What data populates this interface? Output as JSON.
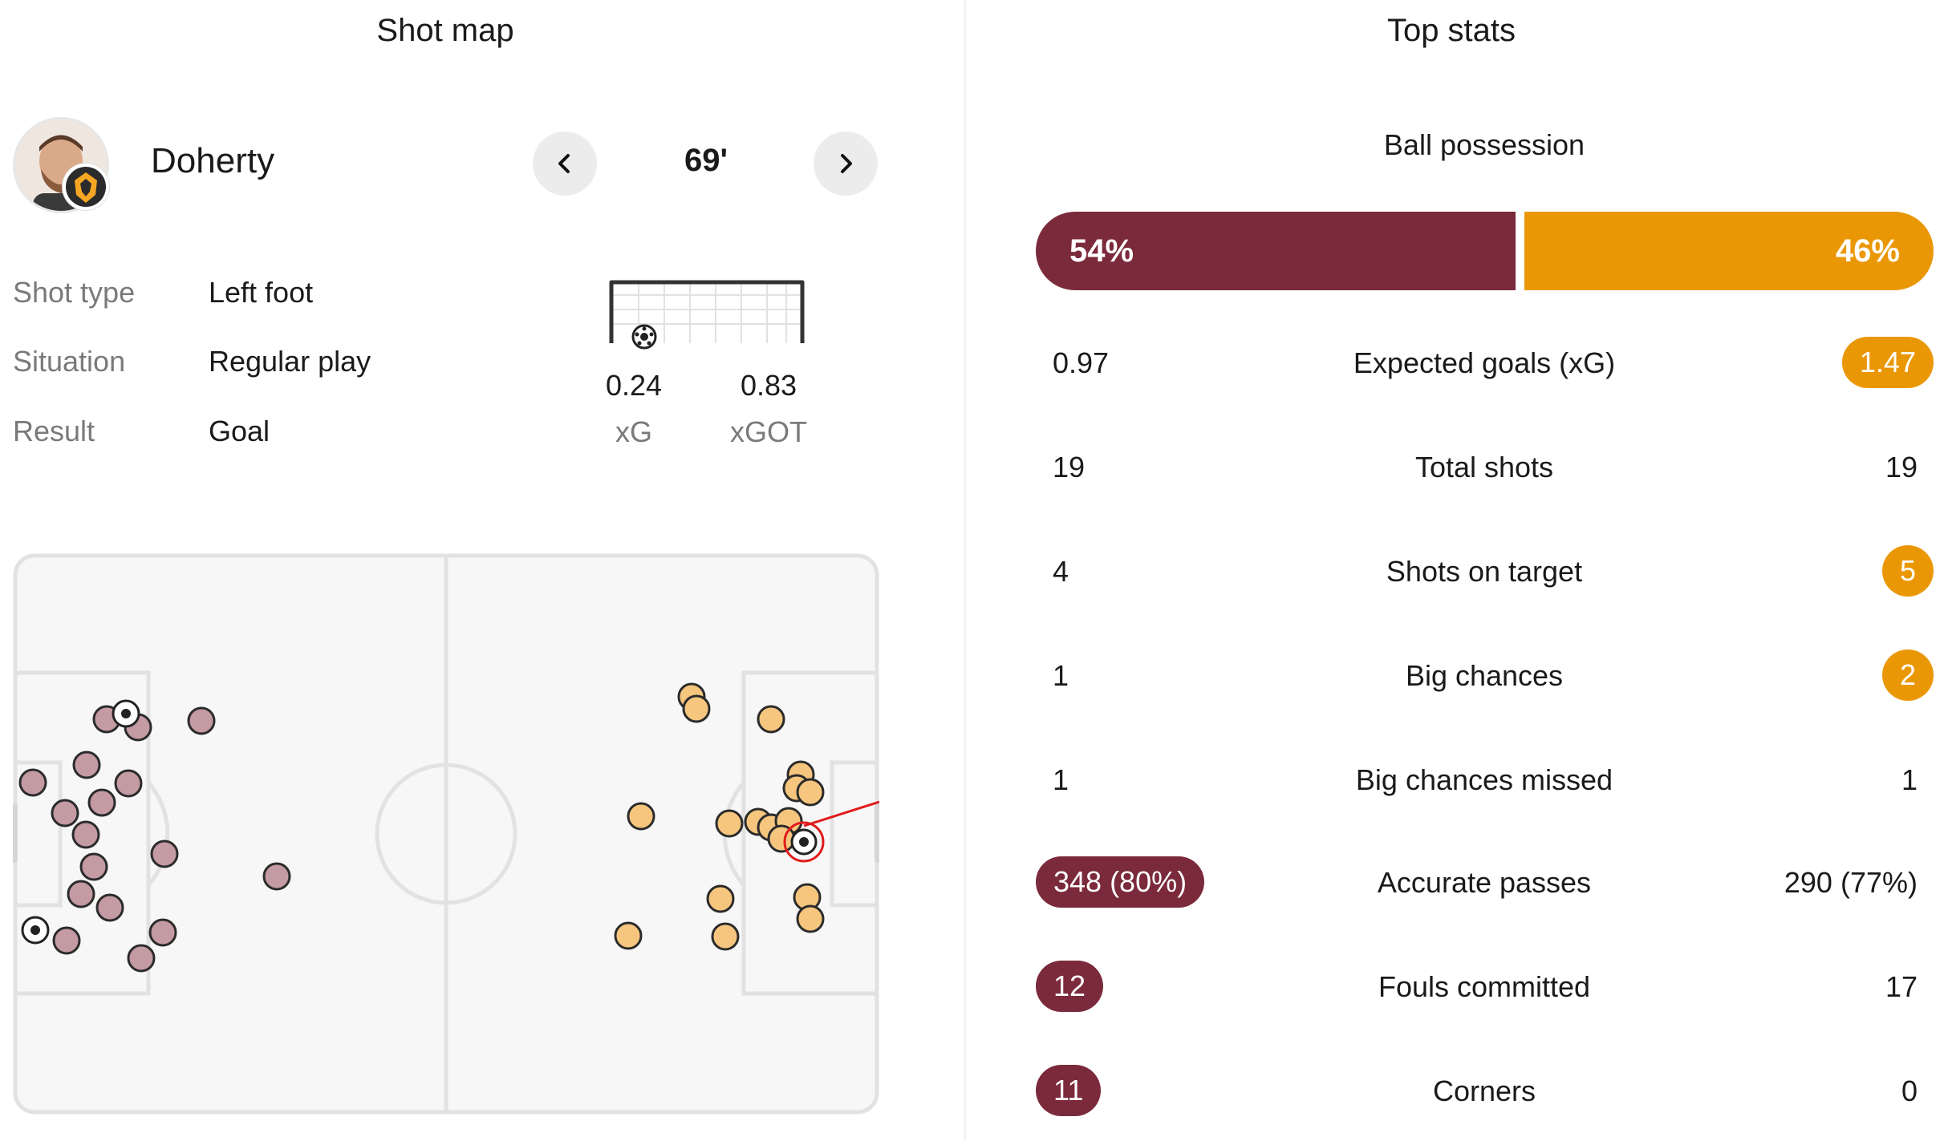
{
  "shot_map": {
    "title": "Shot map",
    "player_name": "Doherty",
    "minute": "69'",
    "details": [
      {
        "label": "Shot type",
        "value": "Left foot"
      },
      {
        "label": "Situation",
        "value": "Regular play"
      },
      {
        "label": "Result",
        "value": "Goal"
      }
    ],
    "xg": {
      "value": "0.24",
      "label": "xG"
    },
    "xgot": {
      "value": "0.83",
      "label": "xGOT"
    },
    "icons": {
      "prev": "chevron-left-icon",
      "next": "chevron-right-icon",
      "team_badge": "wolf-badge-icon",
      "goal": "goal-frame-icon",
      "ball": "football-icon"
    }
  },
  "top_stats": {
    "title": "Top stats",
    "possession": {
      "label": "Ball possession",
      "home": "54%",
      "away": "46%",
      "home_fraction": 0.54
    },
    "rows": [
      {
        "label": "Expected goals (xG)",
        "home": "0.97",
        "away": "1.47",
        "highlight": "away"
      },
      {
        "label": "Total shots",
        "home": "19",
        "away": "19",
        "highlight": "none"
      },
      {
        "label": "Shots on target",
        "home": "4",
        "away": "5",
        "highlight": "away"
      },
      {
        "label": "Big chances",
        "home": "1",
        "away": "2",
        "highlight": "away"
      },
      {
        "label": "Big chances missed",
        "home": "1",
        "away": "1",
        "highlight": "none"
      },
      {
        "label": "Accurate passes",
        "home": "348 (80%)",
        "away": "290 (77%)",
        "highlight": "home"
      },
      {
        "label": "Fouls committed",
        "home": "12",
        "away": "17",
        "highlight": "home"
      },
      {
        "label": "Corners",
        "home": "11",
        "away": "0",
        "highlight": "home"
      }
    ]
  },
  "colors": {
    "home": "#7b2a3b",
    "away": "#ea9706",
    "home_shot": "#c49aa3",
    "away_shot": "#f6c67f",
    "selected_ring": "#e01b1b"
  }
}
